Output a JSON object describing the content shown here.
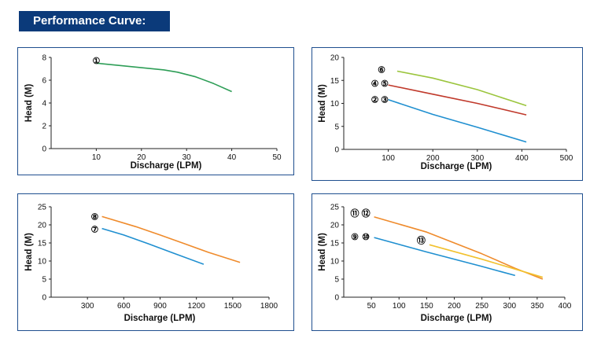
{
  "header": {
    "title": "Performance Curve:"
  },
  "chart_data": [
    {
      "type": "line",
      "xlabel": "Discharge (LPM)",
      "ylabel": "Head (M)",
      "xlim": [
        0,
        50
      ],
      "ylim": [
        0,
        8
      ],
      "xticks": [
        10,
        20,
        30,
        40,
        50
      ],
      "yticks": [
        0,
        2,
        4,
        6,
        8
      ],
      "series": [
        {
          "name": "1",
          "color": "#2e9e57",
          "x": [
            10,
            15,
            20,
            25,
            28,
            32,
            36,
            40
          ],
          "y": [
            7.5,
            7.3,
            7.1,
            6.9,
            6.7,
            6.3,
            5.7,
            5.0
          ]
        }
      ],
      "labels": [
        {
          "text": "①",
          "x": 10,
          "y": 7.8
        }
      ]
    },
    {
      "type": "line",
      "xlabel": "Discharge (LPM)",
      "ylabel": "Head (M)",
      "xlim": [
        0,
        500
      ],
      "ylim": [
        0,
        20
      ],
      "xticks": [
        100,
        200,
        300,
        400,
        500
      ],
      "yticks": [
        0,
        5,
        10,
        15,
        20
      ],
      "series": [
        {
          "name": "6",
          "color": "#9bc53d",
          "x": [
            120,
            200,
            300,
            410
          ],
          "y": [
            17.0,
            15.5,
            13.0,
            9.5
          ]
        },
        {
          "name": "4 5",
          "color": "#c0392b",
          "x": [
            100,
            200,
            300,
            410
          ],
          "y": [
            14.0,
            12.0,
            10.0,
            7.5
          ]
        },
        {
          "name": "2 3",
          "color": "#1f8fd0",
          "x": [
            100,
            200,
            300,
            410
          ],
          "y": [
            10.8,
            7.6,
            4.8,
            1.6
          ]
        }
      ],
      "labels": [
        {
          "text": "⑥",
          "x": 85,
          "y": 17.5
        },
        {
          "text": "④",
          "x": 70,
          "y": 14.5
        },
        {
          "text": "⑤",
          "x": 92,
          "y": 14.5
        },
        {
          "text": "②",
          "x": 70,
          "y": 11.0
        },
        {
          "text": "③",
          "x": 92,
          "y": 11.0
        }
      ]
    },
    {
      "type": "line",
      "xlabel": "Discharge (LPM)",
      "ylabel": "Head (M)",
      "xlim": [
        0,
        1800
      ],
      "ylim": [
        0,
        25
      ],
      "xticks": [
        300,
        600,
        900,
        1200,
        1500,
        1800
      ],
      "yticks": [
        0,
        5,
        10,
        15,
        20,
        25
      ],
      "series": [
        {
          "name": "8",
          "color": "#ef8b2c",
          "x": [
            420,
            700,
            900,
            1100,
            1300,
            1560
          ],
          "y": [
            22.3,
            19.5,
            17.2,
            14.8,
            12.4,
            9.6
          ]
        },
        {
          "name": "7",
          "color": "#1f8fd0",
          "x": [
            420,
            600,
            800,
            1000,
            1260
          ],
          "y": [
            19.0,
            17.2,
            14.8,
            12.3,
            9.1
          ]
        }
      ],
      "labels": [
        {
          "text": "⑧",
          "x": 360,
          "y": 22.5
        },
        {
          "text": "⑦",
          "x": 360,
          "y": 19.0
        }
      ]
    },
    {
      "type": "line",
      "xlabel": "Discharge (LPM)",
      "ylabel": "Head (M)",
      "xlim": [
        0,
        400
      ],
      "ylim": [
        0,
        25
      ],
      "xticks": [
        50,
        100,
        150,
        200,
        250,
        300,
        350,
        400
      ],
      "yticks": [
        0,
        5,
        10,
        15,
        20,
        25
      ],
      "series": [
        {
          "name": "11 12",
          "color": "#ef8b2c",
          "x": [
            55,
            150,
            250,
            310,
            360
          ],
          "y": [
            22.2,
            18.0,
            12.0,
            8.0,
            5.0
          ]
        },
        {
          "name": "9 10",
          "color": "#1f8fd0",
          "x": [
            55,
            150,
            250,
            310
          ],
          "y": [
            16.5,
            12.5,
            8.5,
            6.0
          ]
        },
        {
          "name": "13",
          "color": "#f2c12e",
          "x": [
            155,
            250,
            360
          ],
          "y": [
            14.5,
            10.5,
            5.5
          ]
        }
      ],
      "labels": [
        {
          "text": "⑪",
          "x": 20,
          "y": 23.5
        },
        {
          "text": "⑫",
          "x": 40,
          "y": 23.5
        },
        {
          "text": "⑨",
          "x": 20,
          "y": 17.0
        },
        {
          "text": "⑩",
          "x": 40,
          "y": 17.0
        },
        {
          "text": "⑬",
          "x": 140,
          "y": 16.0
        }
      ]
    }
  ]
}
